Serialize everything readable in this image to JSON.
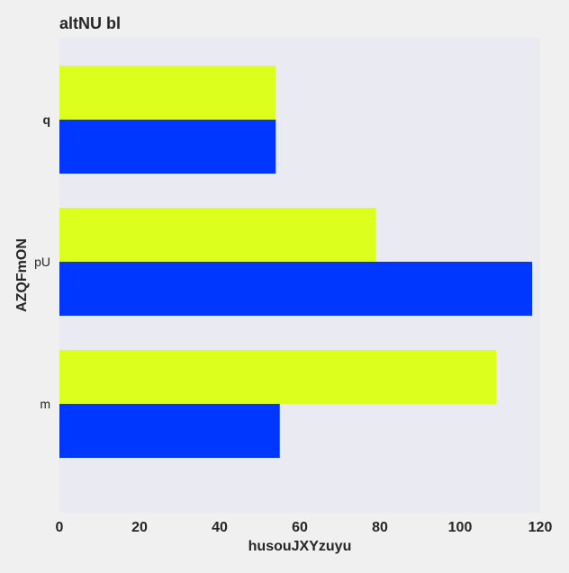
{
  "chart_data": {
    "type": "bar",
    "orientation": "horizontal",
    "title": "altNU bl",
    "xlabel": "husouJXYzuyu",
    "ylabel": "AZQFmON",
    "categories": [
      "q",
      "pU",
      "m"
    ],
    "series": [
      {
        "color": "#dcff1e",
        "values": [
          54,
          79,
          109
        ]
      },
      {
        "color": "#0037ff",
        "values": [
          54,
          118,
          55
        ]
      }
    ],
    "xlim": [
      0,
      120
    ],
    "xticks": [
      0,
      20,
      40,
      60,
      80,
      100,
      120
    ],
    "grid": false,
    "legend": false
  },
  "colors": {
    "page_background": "#f0f0f0",
    "plot_background": "#eaeaf2",
    "text": "#262626"
  }
}
